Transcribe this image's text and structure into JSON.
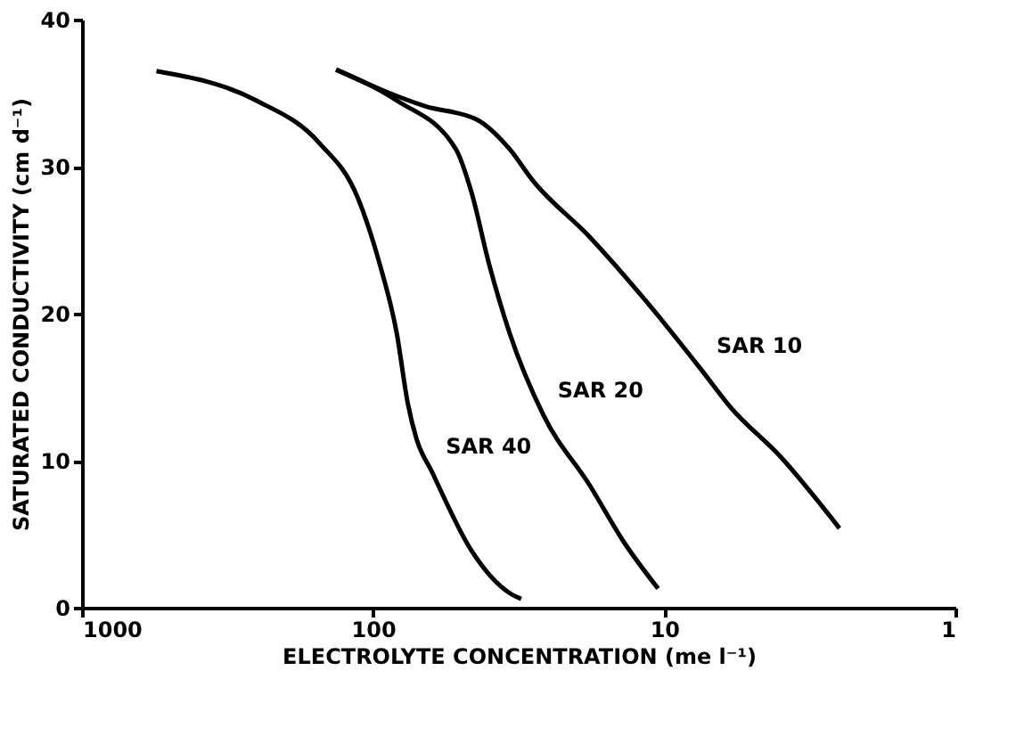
{
  "chart_data": {
    "type": "line",
    "xlabel": "ELECTROLYTE   CONCENTRATION   (me l⁻¹)",
    "ylabel": "SATURATED   CONDUCTIVITY   (cm d⁻¹)",
    "log": "x",
    "xlim": [
      1000,
      1
    ],
    "xticks": [
      1000,
      100,
      10,
      1
    ],
    "ylim": [
      0,
      40
    ],
    "yticks": [
      0,
      10,
      20,
      30,
      40
    ],
    "grid": false,
    "legend": false,
    "marker": "none",
    "line_style": "solid",
    "series": [
      {
        "name": "SAR 40",
        "color": "#000000",
        "x": [
          555,
          252,
          153,
          113,
          95,
          83,
          76,
          71,
          63,
          46,
          34,
          31
        ],
        "values": [
          36.5,
          34.5,
          31.6,
          27.9,
          23.4,
          18.7,
          13.9,
          11.5,
          9.3,
          3.9,
          1.0,
          0.6
        ]
      },
      {
        "name": "SAR 20",
        "color": "#000000",
        "x": [
          134,
          83,
          52,
          46,
          40,
          34,
          26,
          18,
          13.8,
          10.5
        ],
        "values": [
          36.6,
          34.5,
          31.2,
          28.3,
          23.4,
          18.7,
          13.1,
          8.3,
          4.5,
          1.3
        ]
      },
      {
        "name": "SAR 10",
        "color": "#000000",
        "x": [
          134,
          66,
          44,
          34,
          28.4,
          18,
          11.6,
          7.4,
          5.9,
          4.0,
          2.5
        ],
        "values": [
          36.6,
          34.1,
          33.2,
          31.2,
          29.1,
          25.2,
          20.9,
          16.1,
          13.6,
          10.3,
          5.4
        ]
      }
    ]
  }
}
